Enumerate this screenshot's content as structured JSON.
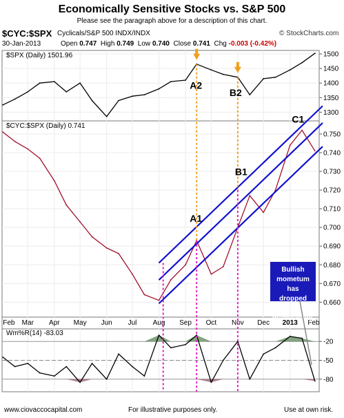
{
  "header": {
    "title": "Economically Sensitive Stocks vs. S&P 500",
    "subtitle": "Please see the paragraph above for a description of this chart.",
    "symbol": "$CYC:$SPX",
    "symbol_desc": "Cyclicals/S&P 500 INDX/INDX",
    "brand": "© StockCharts.com",
    "date": "30-Jan-2013",
    "open_label": "Open",
    "open": "0.747",
    "high_label": "High",
    "high": "0.749",
    "low_label": "Low",
    "low": "0.740",
    "close_label": "Close",
    "close": "0.741",
    "chg_label": "Chg",
    "chg": "-0.003 (-0.42%)"
  },
  "footer": {
    "left": "www.ciovaccocapital.com",
    "center": "For illustrative purposes only.",
    "right": "Use at own risk."
  },
  "colors": {
    "ratio_line": "#a0102c",
    "price_line": "#000000",
    "channel": "#1212d0",
    "guide_orange": "#f0a020",
    "guide_magenta": "#e020c0",
    "wr_fill": "#6d9468",
    "wr_fill_low": "#a36d7c",
    "callout_bg": "#1a1ab8"
  },
  "chart_data": [
    {
      "type": "line",
      "panel": "top",
      "legend": "$SPX (Daily) 1501.96",
      "yticks": [
        1300,
        1350,
        1400,
        1450,
        1500
      ],
      "ylim": [
        1270,
        1512
      ],
      "x": [
        "2012-02-01",
        "2012-02-15",
        "2012-03-01",
        "2012-03-15",
        "2012-04-01",
        "2012-04-15",
        "2012-05-01",
        "2012-05-15",
        "2012-06-01",
        "2012-06-15",
        "2012-07-01",
        "2012-07-15",
        "2012-08-01",
        "2012-08-15",
        "2012-09-01",
        "2012-09-14",
        "2012-10-01",
        "2012-10-15",
        "2012-11-01",
        "2012-11-15",
        "2012-12-01",
        "2012-12-15",
        "2013-01-01",
        "2013-01-15",
        "2013-01-30"
      ],
      "values": [
        1325,
        1345,
        1370,
        1400,
        1405,
        1370,
        1400,
        1340,
        1285,
        1340,
        1355,
        1360,
        1380,
        1405,
        1410,
        1465,
        1445,
        1430,
        1420,
        1360,
        1415,
        1420,
        1445,
        1470,
        1502
      ]
    },
    {
      "type": "line",
      "panel": "middle",
      "legend": "$CYC:$SPX (Daily) 0.741",
      "yticks": [
        0.66,
        0.67,
        0.68,
        0.69,
        0.7,
        0.71,
        0.72,
        0.73,
        0.74,
        0.75
      ],
      "ylim": [
        0.652,
        0.757
      ],
      "x": [
        "2012-02-01",
        "2012-02-15",
        "2012-03-01",
        "2012-03-15",
        "2012-04-01",
        "2012-04-15",
        "2012-05-01",
        "2012-05-15",
        "2012-06-01",
        "2012-06-15",
        "2012-07-01",
        "2012-07-15",
        "2012-08-01",
        "2012-08-15",
        "2012-09-01",
        "2012-09-14",
        "2012-10-01",
        "2012-10-15",
        "2012-11-01",
        "2012-11-15",
        "2012-12-01",
        "2012-12-15",
        "2013-01-01",
        "2013-01-15",
        "2013-01-30"
      ],
      "values": [
        0.751,
        0.746,
        0.742,
        0.737,
        0.725,
        0.712,
        0.703,
        0.695,
        0.689,
        0.686,
        0.675,
        0.664,
        0.661,
        0.672,
        0.68,
        0.693,
        0.675,
        0.679,
        0.7,
        0.717,
        0.708,
        0.72,
        0.744,
        0.752,
        0.741
      ],
      "annotations": [
        "A1",
        "A2",
        "B1",
        "B2",
        "C1"
      ],
      "callout": "Bullish mometum has dropped fast and dramatically."
    },
    {
      "type": "line",
      "panel": "bottom",
      "legend": "Wm%R(14) -83.03",
      "yticks": [
        -20,
        -50,
        -80
      ],
      "ylim": [
        -100,
        0
      ],
      "x_labels": [
        "Feb",
        "Mar",
        "Apr",
        "May",
        "Jun",
        "Jul",
        "Aug",
        "Sep",
        "Oct",
        "Nov",
        "Dec",
        "2013",
        "Feb"
      ],
      "x": [
        "2012-02-01",
        "2012-02-15",
        "2012-03-01",
        "2012-03-15",
        "2012-04-01",
        "2012-04-15",
        "2012-05-01",
        "2012-05-15",
        "2012-06-01",
        "2012-06-15",
        "2012-07-01",
        "2012-07-15",
        "2012-08-01",
        "2012-08-15",
        "2012-09-01",
        "2012-09-14",
        "2012-10-01",
        "2012-10-15",
        "2012-11-01",
        "2012-11-15",
        "2012-12-01",
        "2012-12-15",
        "2013-01-01",
        "2013-01-15",
        "2013-01-30"
      ],
      "values": [
        -45,
        -60,
        -55,
        -70,
        -75,
        -60,
        -85,
        -55,
        -80,
        -40,
        -60,
        -75,
        -10,
        -30,
        -25,
        -10,
        -85,
        -50,
        -20,
        -80,
        -40,
        -30,
        -12,
        -15,
        -83
      ]
    }
  ]
}
